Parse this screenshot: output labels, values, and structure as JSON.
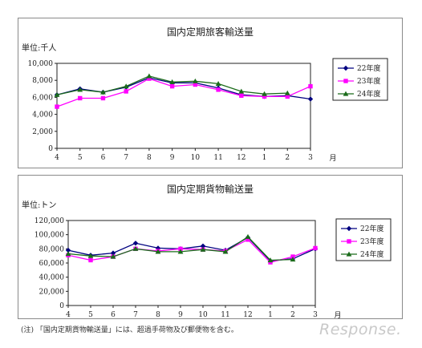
{
  "chart_data": [
    {
      "type": "line",
      "title": "国内定期旅客輸送量",
      "unit_label": "単位:千人",
      "month_label": "月",
      "categories": [
        "4",
        "5",
        "6",
        "7",
        "8",
        "9",
        "10",
        "11",
        "12",
        "1",
        "2",
        "3"
      ],
      "ylim": [
        0,
        10000
      ],
      "yticks": [
        "0",
        "2,000",
        "4,000",
        "6,000",
        "8,000",
        "10,000"
      ],
      "grid": false,
      "legend_position": "right",
      "series": [
        {
          "name": "22年度",
          "color": "#000080",
          "marker": "diamond",
          "values": [
            6300,
            7000,
            6600,
            7200,
            8300,
            7700,
            7700,
            7100,
            6300,
            6100,
            6200,
            5800
          ]
        },
        {
          "name": "23年度",
          "color": "#ff00ff",
          "marker": "square",
          "values": [
            4900,
            5900,
            5900,
            6700,
            8200,
            7300,
            7500,
            6900,
            6200,
            6100,
            6100,
            7300
          ]
        },
        {
          "name": "24年度",
          "color": "#1a6b1a",
          "marker": "triangle",
          "values": [
            6300,
            6900,
            6600,
            7300,
            8500,
            7800,
            7900,
            7600,
            6700,
            6400,
            6500,
            null
          ]
        }
      ]
    },
    {
      "type": "line",
      "title": "国内定期貨物輸送量",
      "unit_label": "単位:トン",
      "month_label": "月",
      "categories": [
        "4",
        "5",
        "6",
        "7",
        "8",
        "9",
        "10",
        "11",
        "12",
        "1",
        "2",
        "3"
      ],
      "ylim": [
        0,
        120000
      ],
      "yticks": [
        "0",
        "20,000",
        "40,000",
        "60,000",
        "80,000",
        "100,000",
        "120,000"
      ],
      "grid": false,
      "legend_position": "right",
      "series": [
        {
          "name": "22年度",
          "color": "#000080",
          "marker": "diamond",
          "values": [
            78000,
            71000,
            74000,
            88000,
            81000,
            80000,
            84000,
            78000,
            96000,
            63000,
            66000,
            80000
          ]
        },
        {
          "name": "23年度",
          "color": "#ff00ff",
          "marker": "square",
          "values": [
            71000,
            64000,
            69000,
            80000,
            77000,
            80000,
            79000,
            77000,
            93000,
            61000,
            69000,
            81000
          ]
        },
        {
          "name": "24年度",
          "color": "#1a6b1a",
          "marker": "triangle",
          "values": [
            73000,
            70000,
            69000,
            80000,
            76000,
            76000,
            79000,
            76000,
            97000,
            64000,
            65000,
            null
          ]
        }
      ]
    }
  ],
  "note": "(注) 「国内定期貨物輸送量」には、超過手荷物及び郵便物を含む。",
  "watermark": "Response."
}
